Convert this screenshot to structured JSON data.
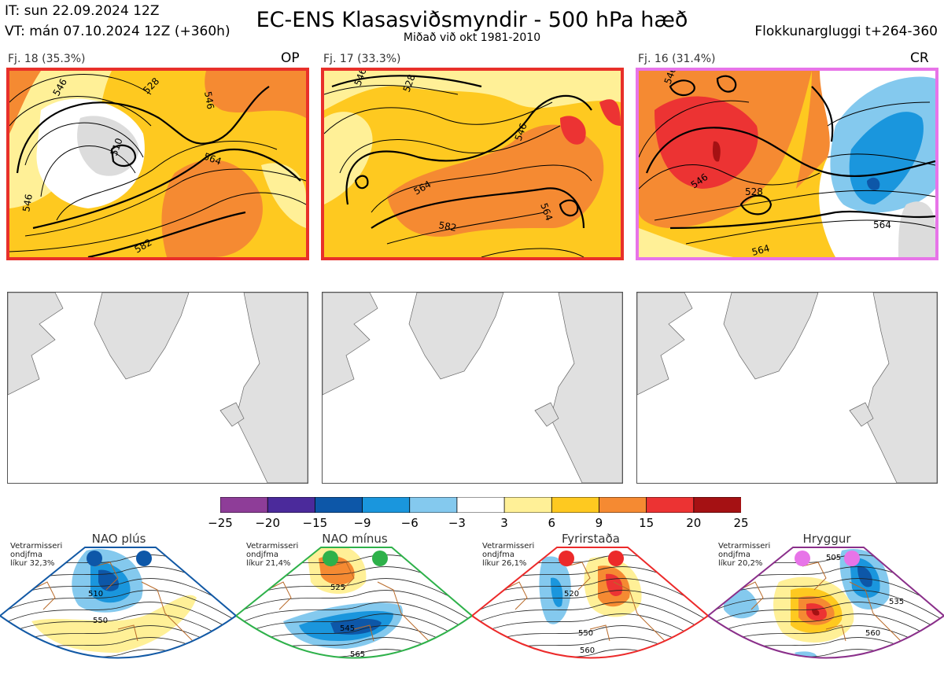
{
  "header": {
    "it_line": "IT: sun 22.09.2024 12Z",
    "vt_line": "VT: mán 07.10.2024 12Z  (+360h)",
    "title": "EC-ENS Klasasviðsmyndir - 500 hPa hæð",
    "subtitle": "Miðað við okt 1981-2010",
    "window": "Flokkunargluggi t+264-360"
  },
  "clusters": [
    {
      "label": "Fj. 18 (35.3%)",
      "tag": "OP",
      "border_color": "#e8302a",
      "contour_labels": [
        "546",
        "528",
        "510",
        "546",
        "564",
        "582",
        "546"
      ]
    },
    {
      "label": "Fj. 17 (33.3%)",
      "tag": "",
      "border_color": "#e8302a",
      "contour_labels": [
        "546",
        "528",
        "564",
        "582",
        "546",
        "564"
      ]
    },
    {
      "label": "Fj. 16 (31.4%)",
      "tag": "CR",
      "border_color": "#e774e8",
      "contour_labels": [
        "546",
        "528",
        "546",
        "564",
        "564"
      ]
    }
  ],
  "colorbar": {
    "colors": [
      "#8e3d98",
      "#4b2a9b",
      "#0d57a8",
      "#1a96dd",
      "#84c9ee",
      "#ffffff",
      "#fff097",
      "#fec920",
      "#f58a32",
      "#ec3333",
      "#a51113"
    ],
    "ticks": [
      "−25",
      "−20",
      "−15",
      "−9",
      "−6",
      "−3",
      "3",
      "6",
      "9",
      "15",
      "20",
      "25"
    ]
  },
  "regimes": [
    {
      "name": "NAO plús",
      "season": "Vetrarmisseri",
      "line2": "ondjfma",
      "prob": "líkur 32,3%",
      "dot_color": "#0d57a8",
      "frame_color": "#1259a5",
      "labels": [
        "510",
        "550"
      ]
    },
    {
      "name": "NAO mínus",
      "season": "Vetrarmisseri",
      "line2": "ondjfma",
      "prob": "líkur 21,4%",
      "dot_color": "#2eb14a",
      "frame_color": "#2eb14a",
      "labels": [
        "525",
        "545",
        "565"
      ]
    },
    {
      "name": "Fyrirstaða",
      "season": "Vetrarmisseri",
      "line2": "ondjfma",
      "prob": "líkur 26,1%",
      "dot_color": "#ec2a2a",
      "frame_color": "#ec2a2a",
      "labels": [
        "520",
        "550",
        "560"
      ]
    },
    {
      "name": "Hryggur",
      "season": "Vetrarmisseri",
      "line2": "ondjfma",
      "prob": "líkur 20,2%",
      "dot_color": "#e774e8",
      "frame_color": "#8a2f8a",
      "labels": [
        "505",
        "535",
        "560"
      ]
    }
  ]
}
